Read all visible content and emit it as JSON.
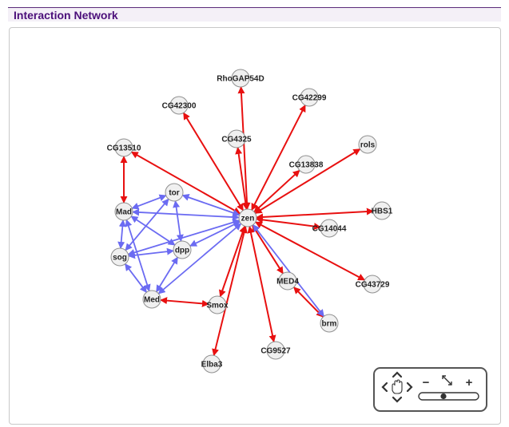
{
  "panel": {
    "title": "Interaction Network"
  },
  "colors": {
    "red_edge": "#e81010",
    "blue_edge": "#6b6bf2",
    "node_fill": "#f0f0f0",
    "node_stroke": "#909090",
    "title": "#4b0f7a"
  },
  "network": {
    "nodes": [
      {
        "id": "zen",
        "label": "zen"
      },
      {
        "id": "RhoGAP54D",
        "label": "RhoGAP54D"
      },
      {
        "id": "CG42300",
        "label": "CG42300"
      },
      {
        "id": "CG42299",
        "label": "CG42299"
      },
      {
        "id": "CG4325",
        "label": "CG4325"
      },
      {
        "id": "CG13510",
        "label": "CG13510"
      },
      {
        "id": "rols",
        "label": "rols"
      },
      {
        "id": "CG13838",
        "label": "CG13838"
      },
      {
        "id": "tor",
        "label": "tor"
      },
      {
        "id": "Mad",
        "label": "Mad"
      },
      {
        "id": "HBS1",
        "label": "HBS1"
      },
      {
        "id": "CG14044",
        "label": "CG14044"
      },
      {
        "id": "dpp",
        "label": "dpp"
      },
      {
        "id": "sog",
        "label": "sog"
      },
      {
        "id": "MED4",
        "label": "MED4"
      },
      {
        "id": "CG43729",
        "label": "CG43729"
      },
      {
        "id": "Med",
        "label": "Med"
      },
      {
        "id": "Smox",
        "label": "Smox"
      },
      {
        "id": "brm",
        "label": "brm"
      },
      {
        "id": "CG9527",
        "label": "CG9527"
      },
      {
        "id": "Elba3",
        "label": "Elba3"
      }
    ],
    "edges": [
      {
        "source": "zen",
        "target": "RhoGAP54D",
        "type": "red"
      },
      {
        "source": "zen",
        "target": "CG42300",
        "type": "red"
      },
      {
        "source": "zen",
        "target": "CG42299",
        "type": "red"
      },
      {
        "source": "zen",
        "target": "CG4325",
        "type": "red"
      },
      {
        "source": "zen",
        "target": "CG13510",
        "type": "red"
      },
      {
        "source": "zen",
        "target": "rols",
        "type": "red"
      },
      {
        "source": "zen",
        "target": "CG13838",
        "type": "red"
      },
      {
        "source": "zen",
        "target": "HBS1",
        "type": "red"
      },
      {
        "source": "zen",
        "target": "CG14044",
        "type": "red"
      },
      {
        "source": "zen",
        "target": "CG43729",
        "type": "red"
      },
      {
        "source": "zen",
        "target": "MED4",
        "type": "red"
      },
      {
        "source": "zen",
        "target": "Smox",
        "type": "red"
      },
      {
        "source": "zen",
        "target": "CG9527",
        "type": "red"
      },
      {
        "source": "zen",
        "target": "Elba3",
        "type": "red"
      },
      {
        "source": "CG13510",
        "target": "Mad",
        "type": "red"
      },
      {
        "source": "Med",
        "target": "Smox",
        "type": "red"
      },
      {
        "source": "MED4",
        "target": "brm",
        "type": "red"
      },
      {
        "source": "zen",
        "target": "brm",
        "type": "blue"
      },
      {
        "source": "tor",
        "target": "zen",
        "type": "blue"
      },
      {
        "source": "Mad",
        "target": "zen",
        "type": "blue"
      },
      {
        "source": "dpp",
        "target": "zen",
        "type": "blue"
      },
      {
        "source": "sog",
        "target": "zen",
        "type": "blue"
      },
      {
        "source": "Med",
        "target": "zen",
        "type": "blue"
      },
      {
        "source": "tor",
        "target": "Mad",
        "type": "blue"
      },
      {
        "source": "tor",
        "target": "dpp",
        "type": "blue"
      },
      {
        "source": "tor",
        "target": "sog",
        "type": "blue"
      },
      {
        "source": "Mad",
        "target": "sog",
        "type": "blue"
      },
      {
        "source": "Mad",
        "target": "dpp",
        "type": "blue"
      },
      {
        "source": "Mad",
        "target": "Med",
        "type": "blue"
      },
      {
        "source": "sog",
        "target": "dpp",
        "type": "blue"
      },
      {
        "source": "sog",
        "target": "Med",
        "type": "blue"
      },
      {
        "source": "dpp",
        "target": "Med",
        "type": "blue"
      }
    ]
  },
  "controls": {
    "pan": "pan-control",
    "zoom_out": "−",
    "zoom_in": "+",
    "fit": "fit-icon",
    "zoom_level": 0.4
  }
}
